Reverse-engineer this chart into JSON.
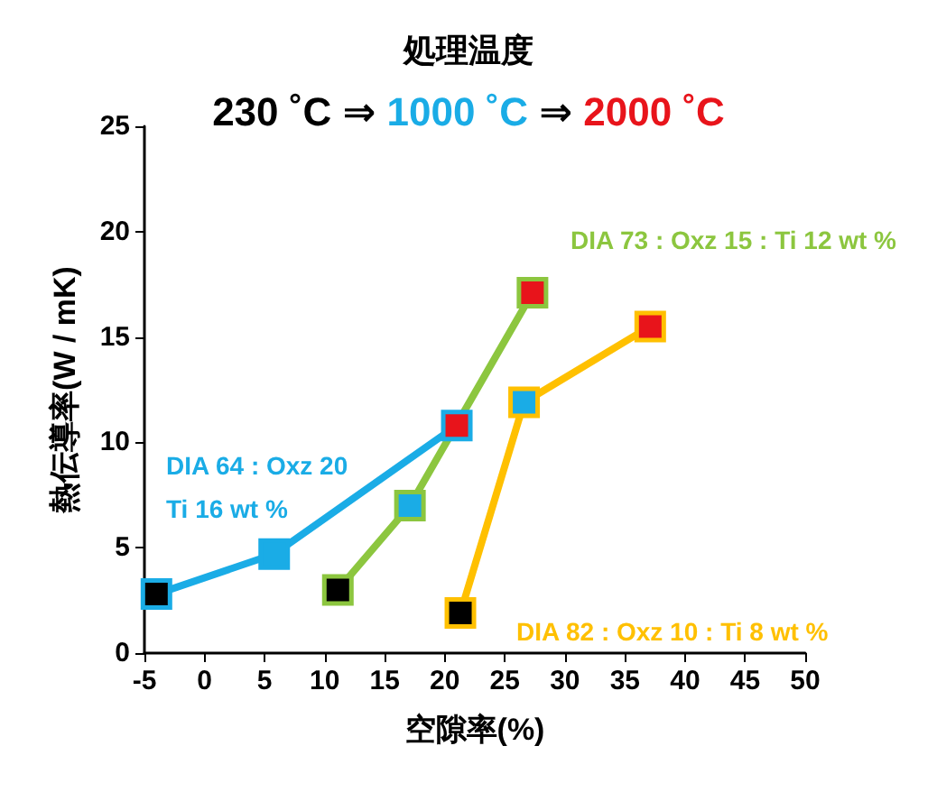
{
  "chart_data": {
    "type": "line",
    "title": "処理温度",
    "subtitle": "230 ˚C ⇒ 1000 ˚C ⇒ 2000 ˚C",
    "xlabel": "空隙率(%)",
    "ylabel": "熱伝導率(W / mK)",
    "series": [
      {
        "name": "DIA 64 : Oxz 20\nTi 16 wt %",
        "color": "#1aace6",
        "x": [
          -4,
          5.8,
          21
        ],
        "values": [
          2.8,
          4.7,
          10.8
        ],
        "colors": [
          "#000000",
          "#1aace6",
          "#e8141b"
        ]
      },
      {
        "name": "DIA 73 : Oxz 15 : Ti 12 wt %",
        "color": "#8cc63f",
        "x": [
          11.1,
          17.1,
          27.3
        ],
        "values": [
          3,
          7,
          17.1
        ],
        "colors": [
          "#000000",
          "#1aace6",
          "#e8141b"
        ]
      },
      {
        "name": "DIA 82 : Oxz 10 : Ti 8 wt %",
        "color": "#ffc000",
        "x": [
          21.3,
          26.6,
          37.1
        ],
        "values": [
          1.9,
          11.9,
          15.5
        ],
        "colors": [
          "#000000",
          "#1aace6",
          "#e8141b"
        ]
      }
    ],
    "xlim": [
      -5,
      50
    ],
    "xticks": [
      -5,
      0,
      5,
      10,
      15,
      20,
      25,
      30,
      35,
      40,
      45,
      50
    ],
    "ylim": [
      0,
      25
    ],
    "yticks": [
      0,
      5,
      10,
      15,
      20,
      25
    ],
    "grid": false,
    "legend": false,
    "marker": "square",
    "line_style": "solid"
  }
}
